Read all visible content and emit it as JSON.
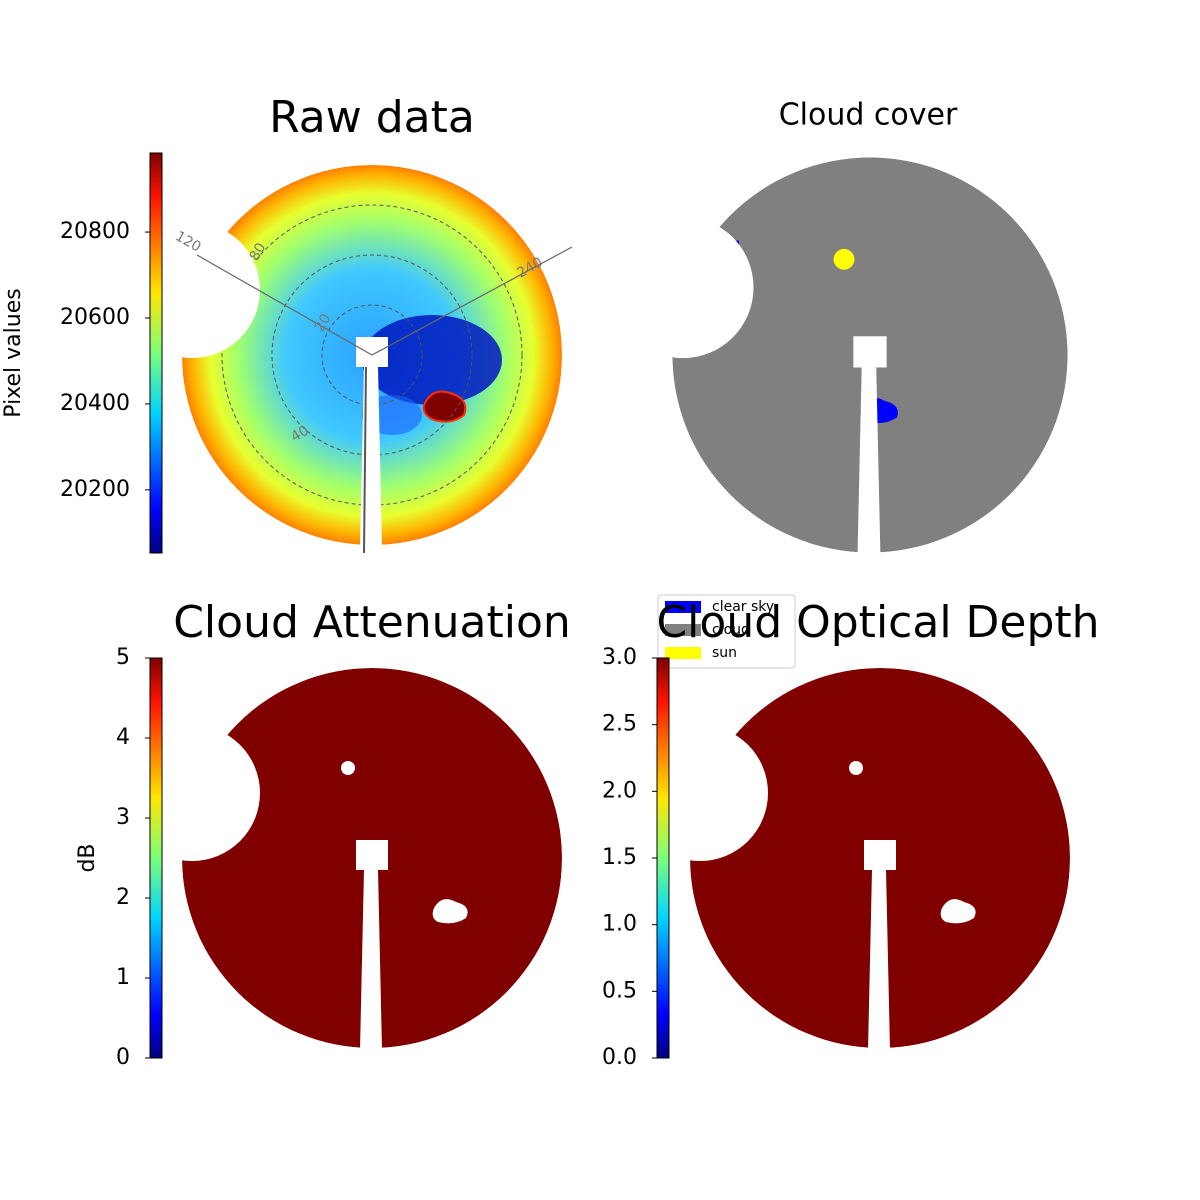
{
  "chart_data": [
    {
      "type": "image",
      "title": "Raw data",
      "colormap": "jet",
      "polar_labels": [
        "120",
        "240",
        "80",
        "20",
        "40"
      ],
      "colorbar": {
        "label": "Pixel values",
        "lim": [
          20053,
          20984
        ],
        "ticks": [
          20200,
          20400,
          20600,
          20800
        ]
      }
    },
    {
      "type": "image",
      "title": "Cloud cover",
      "legend": [
        {
          "name": "clear sky",
          "color": "#0000ff"
        },
        {
          "name": "cloud",
          "color": "#808080"
        },
        {
          "name": "sun",
          "color": "#ffff00"
        }
      ]
    },
    {
      "type": "image",
      "title": "Cloud Attenuation",
      "colormap": "jet",
      "colorbar": {
        "label": "dB",
        "lim": [
          0,
          5
        ],
        "ticks": [
          0,
          1,
          2,
          3,
          4,
          5
        ]
      }
    },
    {
      "type": "image",
      "title": "Cloud Optical Depth",
      "colormap": "jet",
      "colorbar": {
        "lim": [
          0,
          3
        ],
        "ticks": [
          {
            "value": 0,
            "label": "0.0"
          },
          {
            "value": 0.5,
            "label": "0.5"
          },
          {
            "value": 1,
            "label": "1.0"
          },
          {
            "value": 1.5,
            "label": "1.5"
          },
          {
            "value": 2,
            "label": "2.0"
          },
          {
            "value": 2.5,
            "label": "2.5"
          },
          {
            "value": 3,
            "label": "3.0"
          }
        ]
      }
    }
  ]
}
